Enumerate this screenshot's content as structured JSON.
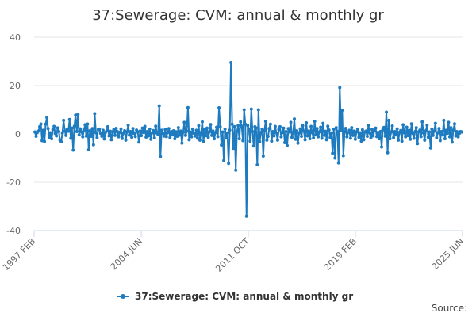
{
  "chart_data": {
    "type": "line",
    "title": "37:Sewerage: CVM: annual & monthly gr",
    "xlabel": "",
    "ylabel": "",
    "credit": "Source:",
    "color": "#1f7bbf",
    "grid": true,
    "legend_position": "bottom-center",
    "ylim": [
      -40,
      40
    ],
    "yticks": [
      "40",
      "20",
      "0",
      "-20",
      "-40"
    ],
    "xticks": [
      "1997 FEB",
      "2004 JUN",
      "2011 OCT",
      "2019 FEB",
      "2025 JUN"
    ],
    "x_range": [
      "1997 FEB",
      "2025 JUN"
    ],
    "series": [
      {
        "name": "37:Sewerage: CVM: annual & monthly gr",
        "values": [
          0.8,
          -1.0,
          0.6,
          1.2,
          3.0,
          4.1,
          -2.8,
          1.5,
          -3.1,
          4.0,
          6.8,
          2.2,
          -1.4,
          0.5,
          -2.0,
          1.8,
          3.1,
          0.2,
          -0.8,
          2.5,
          1.0,
          -2.6,
          -3.2,
          0.4,
          5.6,
          1.2,
          -0.6,
          2.0,
          1.1,
          6.0,
          -1.8,
          2.4,
          -6.7,
          3.2,
          7.8,
          1.0,
          8.1,
          -0.4,
          2.1,
          0.8,
          -1.2,
          1.6,
          3.8,
          -0.9,
          4.1,
          -6.5,
          1.3,
          -1.0,
          2.2,
          -4.5,
          8.4,
          0.6,
          -1.5,
          1.8,
          2.0,
          0.2,
          -1.0,
          1.5,
          -2.1,
          0.6,
          1.2,
          3.0,
          -0.8,
          1.1,
          -2.4,
          0.9,
          1.8,
          -0.6,
          2.3,
          1.0,
          -1.2,
          0.7,
          2.1,
          -1.9,
          0.4,
          1.3,
          -2.6,
          0.8,
          3.6,
          -0.5,
          1.0,
          -1.4,
          2.2,
          0.3,
          -1.1,
          1.6,
          0.9,
          -3.4,
          1.2,
          -0.7,
          2.4,
          0.6,
          3.1,
          -1.3,
          1.0,
          -0.8,
          2.0,
          -2.2,
          0.5,
          1.4,
          -1.6,
          3.2,
          0.4,
          -0.3,
          11.6,
          -9.4,
          1.5,
          0.3,
          -0.9,
          1.8,
          -1.1,
          0.6,
          2.2,
          -1.5,
          1.0,
          -0.4,
          1.3,
          -2.0,
          0.9,
          -1.0,
          2.6,
          -0.5,
          1.2,
          -3.8,
          0.7,
          4.8,
          -0.6,
          1.1,
          10.9,
          -2.4,
          0.8,
          -1.2,
          2.0,
          0.3,
          -0.9,
          1.5,
          -1.8,
          3.4,
          -2.6,
          0.6,
          5.0,
          -3.2,
          1.8,
          -0.7,
          2.4,
          -1.4,
          0.9,
          3.9,
          -0.6,
          1.2,
          -2.0,
          0.5,
          2.8,
          -1.1,
          10.8,
          3.0,
          -4.6,
          0.8,
          -11.0,
          2.0,
          -1.5,
          0.4,
          -12.2,
          1.6,
          29.5,
          4.0,
          -6.0,
          3.0,
          -15.0,
          1.0,
          3.5,
          -2.0,
          5.0,
          3.2,
          -2.8,
          10.0,
          4.0,
          -34.0,
          3.5,
          2.0,
          -3.0,
          10.3,
          1.0,
          -5.0,
          3.0,
          2.5,
          -12.8,
          10.0,
          -3.2,
          0.6,
          2.0,
          -9.2,
          1.4,
          5.2,
          -2.6,
          -1.0,
          2.2,
          4.0,
          -3.0,
          1.0,
          -0.8,
          3.1,
          0.4,
          -2.6,
          1.8,
          3.0,
          -1.2,
          0.6,
          2.4,
          -3.6,
          1.0,
          -4.8,
          2.2,
          0.8,
          4.8,
          -1.4,
          0.6,
          6.2,
          -2.2,
          1.3,
          -3.8,
          0.4,
          2.1,
          -1.0,
          3.4,
          1.1,
          -2.4,
          4.6,
          -0.8,
          1.2,
          -2.0,
          3.1,
          0.5,
          -1.6,
          5.2,
          -0.4,
          2.2,
          -1.2,
          0.9,
          2.8,
          -1.8,
          4.4,
          -0.6,
          1.1,
          -2.4,
          3.2,
          1.6,
          -1.5,
          0.4,
          -8.0,
          2.0,
          -10.0,
          2.6,
          1.0,
          -12.0,
          19.2,
          1.5,
          9.8,
          -9.0,
          0.8,
          2.3,
          -1.2,
          0.6,
          1.5,
          -1.8,
          2.6,
          -0.6,
          1.2,
          -2.2,
          0.9,
          2.0,
          -1.4,
          0.5,
          -3.0,
          1.7,
          -2.4,
          0.8,
          1.2,
          -1.0,
          3.6,
          0.4,
          -1.6,
          1.9,
          -0.8,
          1.3,
          2.4,
          -1.1,
          0.6,
          -2.0,
          1.0,
          -5.4,
          1.8,
          2.7,
          -0.9,
          9.0,
          -7.8,
          5.6,
          -2.0,
          0.8,
          3.3,
          -1.5,
          1.0,
          -0.4,
          2.1,
          -2.6,
          0.7,
          1.4,
          -3.0,
          3.8,
          0.5,
          -1.2,
          2.8,
          -0.7,
          1.5,
          -2.2,
          4.2,
          0.3,
          -1.8,
          1.0,
          2.6,
          -4.0,
          0.9,
          1.6,
          -1.1,
          5.0,
          0.4,
          -2.6,
          1.3,
          3.6,
          -1.4,
          0.8,
          -5.8,
          2.0,
          -0.6,
          1.2,
          4.4,
          -1.6,
          0.5,
          2.2,
          -2.8,
          1.0,
          -0.4,
          5.6,
          -2.0,
          1.5,
          0.3,
          4.8,
          -1.2,
          2.6,
          -3.4,
          1.6,
          4.2,
          -0.8,
          1.0,
          -1.2,
          0.2,
          1.0,
          0.8
        ]
      }
    ]
  }
}
